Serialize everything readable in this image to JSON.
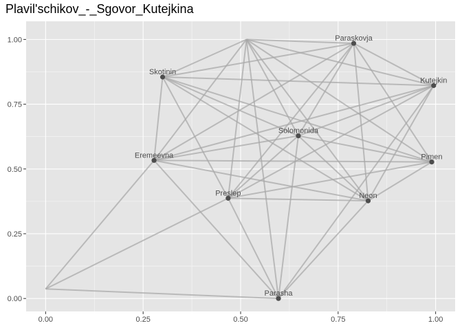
{
  "chart_data": {
    "type": "network",
    "title": "Plavil'schikov_-_Sgovor_Kutejkina",
    "xlim": [
      -0.05,
      1.05
    ],
    "ylim": [
      -0.05,
      1.07
    ],
    "x_ticks": [
      {
        "value": 0,
        "label": "0.00"
      },
      {
        "value": 0.25,
        "label": "0.25"
      },
      {
        "value": 0.5,
        "label": "0.50"
      },
      {
        "value": 0.75,
        "label": "0.75"
      },
      {
        "value": 1,
        "label": "1.00"
      }
    ],
    "y_ticks": [
      {
        "value": 0,
        "label": "0.00"
      },
      {
        "value": 0.25,
        "label": "0.25"
      },
      {
        "value": 0.5,
        "label": "0.50"
      },
      {
        "value": 0.75,
        "label": "0.75"
      },
      {
        "value": 1,
        "label": "1.00"
      }
    ],
    "grid": true,
    "colors": {
      "panel": "#e5e5e5",
      "grid_major": "#ffffff",
      "edge": "#a6a6a6",
      "node": "#4d4d4d",
      "label": "#4d4d4d"
    },
    "nodes": [
      {
        "id": "top",
        "label": "",
        "x": 0.515,
        "y": 1.0
      },
      {
        "id": "paraskovja",
        "label": "Paraskovja",
        "x": 0.79,
        "y": 0.985
      },
      {
        "id": "skotinin",
        "label": "Skotinin",
        "x": 0.3,
        "y": 0.855
      },
      {
        "id": "kutejkin",
        "label": "Kutejkin",
        "x": 0.995,
        "y": 0.822
      },
      {
        "id": "solomonida",
        "label": "Solomonida",
        "x": 0.648,
        "y": 0.628
      },
      {
        "id": "eremeevna",
        "label": "Eremeevna",
        "x": 0.278,
        "y": 0.533
      },
      {
        "id": "pimen",
        "label": "Pimen",
        "x": 0.99,
        "y": 0.527
      },
      {
        "id": "preslep",
        "label": "Preslep",
        "x": 0.468,
        "y": 0.387
      },
      {
        "id": "neon",
        "label": "Neon",
        "x": 0.827,
        "y": 0.377
      },
      {
        "id": "parasha",
        "label": "Parasha",
        "x": 0.597,
        "y": 0.0
      },
      {
        "id": "bottomleft",
        "label": "",
        "x": 0.0,
        "y": 0.037
      }
    ],
    "edges": [
      [
        "top",
        "skotinin"
      ],
      [
        "top",
        "eremeevna"
      ],
      [
        "top",
        "preslep"
      ],
      [
        "top",
        "parasha"
      ],
      [
        "top",
        "neon"
      ],
      [
        "top",
        "pimen"
      ],
      [
        "top",
        "kutejkin"
      ],
      [
        "top",
        "paraskovja"
      ],
      [
        "top",
        "solomonida"
      ],
      [
        "paraskovja",
        "skotinin"
      ],
      [
        "paraskovja",
        "eremeevna"
      ],
      [
        "paraskovja",
        "preslep"
      ],
      [
        "paraskovja",
        "solomonida"
      ],
      [
        "paraskovja",
        "neon"
      ],
      [
        "paraskovja",
        "pimen"
      ],
      [
        "paraskovja",
        "kutejkin"
      ],
      [
        "skotinin",
        "kutejkin"
      ],
      [
        "skotinin",
        "solomonida"
      ],
      [
        "skotinin",
        "neon"
      ],
      [
        "skotinin",
        "pimen"
      ],
      [
        "skotinin",
        "preslep"
      ],
      [
        "skotinin",
        "eremeevna"
      ],
      [
        "kutejkin",
        "eremeevna"
      ],
      [
        "kutejkin",
        "preslep"
      ],
      [
        "kutejkin",
        "solomonida"
      ],
      [
        "kutejkin",
        "neon"
      ],
      [
        "kutejkin",
        "parasha"
      ],
      [
        "solomonida",
        "eremeevna"
      ],
      [
        "solomonida",
        "preslep"
      ],
      [
        "solomonida",
        "pimen"
      ],
      [
        "solomonida",
        "neon"
      ],
      [
        "solomonida",
        "parasha"
      ],
      [
        "eremeevna",
        "pimen"
      ],
      [
        "eremeevna",
        "neon"
      ],
      [
        "eremeevna",
        "parasha"
      ],
      [
        "eremeevna",
        "bottomleft"
      ],
      [
        "pimen",
        "preslep"
      ],
      [
        "pimen",
        "neon"
      ],
      [
        "preslep",
        "neon"
      ],
      [
        "preslep",
        "parasha"
      ],
      [
        "preslep",
        "bottomleft"
      ],
      [
        "neon",
        "parasha"
      ],
      [
        "bottomleft",
        "parasha"
      ]
    ]
  }
}
